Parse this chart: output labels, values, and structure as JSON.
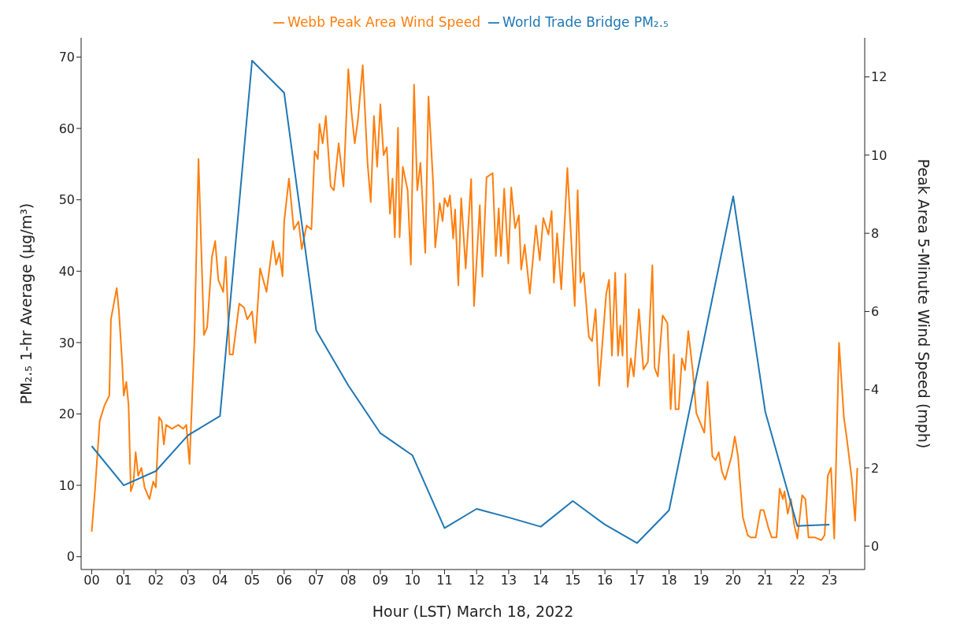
{
  "chart_data": {
    "type": "line",
    "xlabel": "Hour (LST) March 18, 2022",
    "ylabel": "PM₂.₅ 1-hr Average (µg/m³)",
    "y2label": "Peak Area 5-Minute Wind Speed (mph)",
    "legend": "top",
    "line_style": "solid",
    "xlim": [
      -0.33,
      24.1
    ],
    "xticks": [
      {
        "value": 0,
        "label": "00"
      },
      {
        "value": 1,
        "label": "01"
      },
      {
        "value": 2,
        "label": "02"
      },
      {
        "value": 3,
        "label": "03"
      },
      {
        "value": 4,
        "label": "04"
      },
      {
        "value": 5,
        "label": "05"
      },
      {
        "value": 6,
        "label": "06"
      },
      {
        "value": 7,
        "label": "07"
      },
      {
        "value": 8,
        "label": "08"
      },
      {
        "value": 9,
        "label": "09"
      },
      10,
      11,
      12,
      13,
      14,
      15,
      16,
      17,
      18,
      19,
      20,
      21,
      22,
      23
    ],
    "ylim": [
      -1.8,
      72.7
    ],
    "yticks": [
      0,
      10,
      20,
      30,
      40,
      50,
      60,
      70
    ],
    "y2lim": [
      -0.6,
      13.0
    ],
    "y2ticks": [
      0,
      2,
      4,
      6,
      8,
      10,
      12
    ],
    "series": [
      {
        "name": "Webb Peak Area Wind Speed",
        "color": "#ff7f0e",
        "axis": "y2",
        "x": [
          0,
          0.1,
          0.25,
          0.4,
          0.55,
          0.6,
          0.78,
          0.85,
          0.95,
          1.0,
          1.08,
          1.15,
          1.22,
          1.3,
          1.37,
          1.45,
          1.55,
          1.65,
          1.8,
          1.92,
          2.0,
          2.1,
          2.18,
          2.25,
          2.32,
          2.5,
          2.7,
          2.85,
          2.95,
          3.05,
          3.2,
          3.33,
          3.5,
          3.6,
          3.75,
          3.85,
          3.95,
          4.1,
          4.18,
          4.3,
          4.4,
          4.6,
          4.75,
          4.85,
          5.0,
          5.1,
          5.25,
          5.45,
          5.65,
          5.75,
          5.85,
          5.95,
          6.0,
          6.15,
          6.3,
          6.45,
          6.55,
          6.7,
          6.85,
          6.95,
          7.05,
          7.1,
          7.2,
          7.3,
          7.45,
          7.55,
          7.7,
          7.85,
          8.0,
          8.1,
          8.2,
          8.3,
          8.45,
          8.6,
          8.7,
          8.8,
          8.9,
          9.0,
          9.1,
          9.2,
          9.3,
          9.38,
          9.45,
          9.55,
          9.6,
          9.7,
          9.85,
          9.95,
          10.05,
          10.15,
          10.25,
          10.4,
          10.5,
          10.65,
          10.71,
          10.85,
          10.94,
          11.0,
          11.1,
          11.17,
          11.27,
          11.33,
          11.43,
          11.52,
          11.66,
          11.83,
          11.92,
          12.1,
          12.18,
          12.31,
          12.5,
          12.6,
          12.69,
          12.76,
          12.86,
          12.99,
          13.08,
          13.2,
          13.32,
          13.39,
          13.5,
          13.66,
          13.85,
          13.97,
          14.08,
          14.24,
          14.34,
          14.41,
          14.51,
          14.64,
          14.83,
          15.06,
          15.15,
          15.24,
          15.34,
          15.5,
          15.6,
          15.71,
          15.82,
          16.04,
          16.13,
          16.22,
          16.32,
          16.41,
          16.48,
          16.55,
          16.64,
          16.71,
          16.81,
          16.9,
          17.06,
          17.2,
          17.34,
          17.48,
          17.55,
          17.65,
          17.8,
          17.95,
          18.05,
          18.15,
          18.2,
          18.3,
          18.4,
          18.5,
          18.6,
          18.75,
          18.85,
          19.0,
          19.1,
          19.2,
          19.35,
          19.45,
          19.55,
          19.65,
          19.75,
          19.95,
          20.05,
          20.15,
          20.3,
          20.45,
          20.55,
          20.7,
          20.85,
          20.95,
          21.1,
          21.2,
          21.35,
          21.45,
          21.55,
          21.6,
          21.7,
          21.8,
          21.9,
          22.0,
          22.15,
          22.25,
          22.35,
          22.55,
          22.75,
          22.85,
          22.95,
          23.05,
          23.15,
          23.3,
          23.45,
          23.55,
          23.7,
          23.8,
          23.87
        ],
        "values": [
          0.37,
          1.4,
          3.2,
          3.6,
          3.85,
          5.8,
          6.6,
          6.0,
          4.7,
          3.85,
          4.2,
          3.6,
          1.4,
          1.6,
          2.4,
          1.8,
          2.0,
          1.5,
          1.2,
          1.65,
          1.5,
          3.3,
          3.2,
          2.6,
          3.1,
          3.0,
          3.1,
          3.0,
          3.1,
          2.1,
          5.2,
          9.9,
          5.4,
          5.6,
          7.4,
          7.8,
          6.8,
          6.5,
          7.4,
          4.9,
          4.9,
          6.2,
          6.1,
          5.8,
          6.0,
          5.2,
          7.1,
          6.5,
          7.8,
          7.2,
          7.5,
          6.9,
          8.3,
          9.4,
          8.1,
          8.3,
          7.6,
          8.2,
          8.1,
          10.1,
          9.9,
          10.8,
          10.3,
          11.0,
          9.2,
          9.1,
          10.3,
          9.2,
          12.2,
          11.1,
          10.3,
          10.9,
          12.3,
          9.8,
          8.8,
          11.0,
          9.7,
          11.3,
          10.0,
          10.2,
          8.5,
          9.4,
          7.9,
          10.7,
          7.9,
          9.7,
          9.1,
          7.2,
          11.8,
          9.1,
          9.8,
          7.5,
          11.5,
          9.2,
          7.64,
          8.77,
          8.31,
          8.9,
          8.68,
          8.97,
          7.87,
          8.61,
          6.67,
          8.9,
          7.1,
          9.39,
          6.14,
          8.72,
          6.89,
          9.43,
          9.54,
          7.42,
          8.64,
          7.42,
          9.14,
          7.23,
          9.17,
          8.13,
          8.46,
          7.07,
          7.71,
          6.46,
          8.2,
          7.31,
          8.39,
          7.97,
          8.57,
          6.74,
          8.0,
          6.57,
          9.67,
          6.14,
          9.1,
          6.74,
          6.99,
          5.35,
          5.24,
          6.06,
          4.1,
          6.45,
          6.81,
          4.87,
          6.99,
          4.87,
          5.64,
          4.87,
          6.96,
          4.07,
          4.8,
          4.34,
          6.06,
          4.52,
          4.71,
          7.18,
          4.56,
          4.34,
          5.9,
          5.7,
          3.5,
          4.9,
          3.5,
          3.5,
          4.8,
          4.5,
          5.5,
          4.4,
          3.4,
          3.1,
          2.9,
          4.2,
          2.3,
          2.2,
          2.4,
          1.9,
          1.7,
          2.3,
          2.8,
          2.3,
          0.74,
          0.28,
          0.22,
          0.22,
          0.92,
          0.92,
          0.46,
          0.22,
          0.22,
          1.47,
          1.2,
          1.4,
          0.83,
          1.2,
          0.55,
          0.19,
          1.3,
          1.2,
          0.22,
          0.22,
          0.15,
          0.28,
          1.8,
          2.0,
          0.19,
          5.2,
          3.3,
          2.7,
          1.7,
          0.65,
          2.0
        ]
      },
      {
        "name": "World Trade Bridge PM₂.₅",
        "color": "#1f77b4",
        "x": [
          0,
          1,
          2,
          3,
          4,
          5,
          6,
          7,
          8,
          9,
          10,
          11,
          12,
          13,
          14,
          15,
          16,
          17,
          18,
          19,
          20,
          21,
          22,
          23
        ],
        "values": [
          15.5,
          10,
          12,
          17,
          19.7,
          69.5,
          65,
          31.7,
          24,
          17.3,
          14.2,
          4,
          6.7,
          5.5,
          4.2,
          7.8,
          4.5,
          1.9,
          6.5,
          28.5,
          50.5,
          20.3,
          4.3,
          4.5
        ]
      }
    ]
  }
}
